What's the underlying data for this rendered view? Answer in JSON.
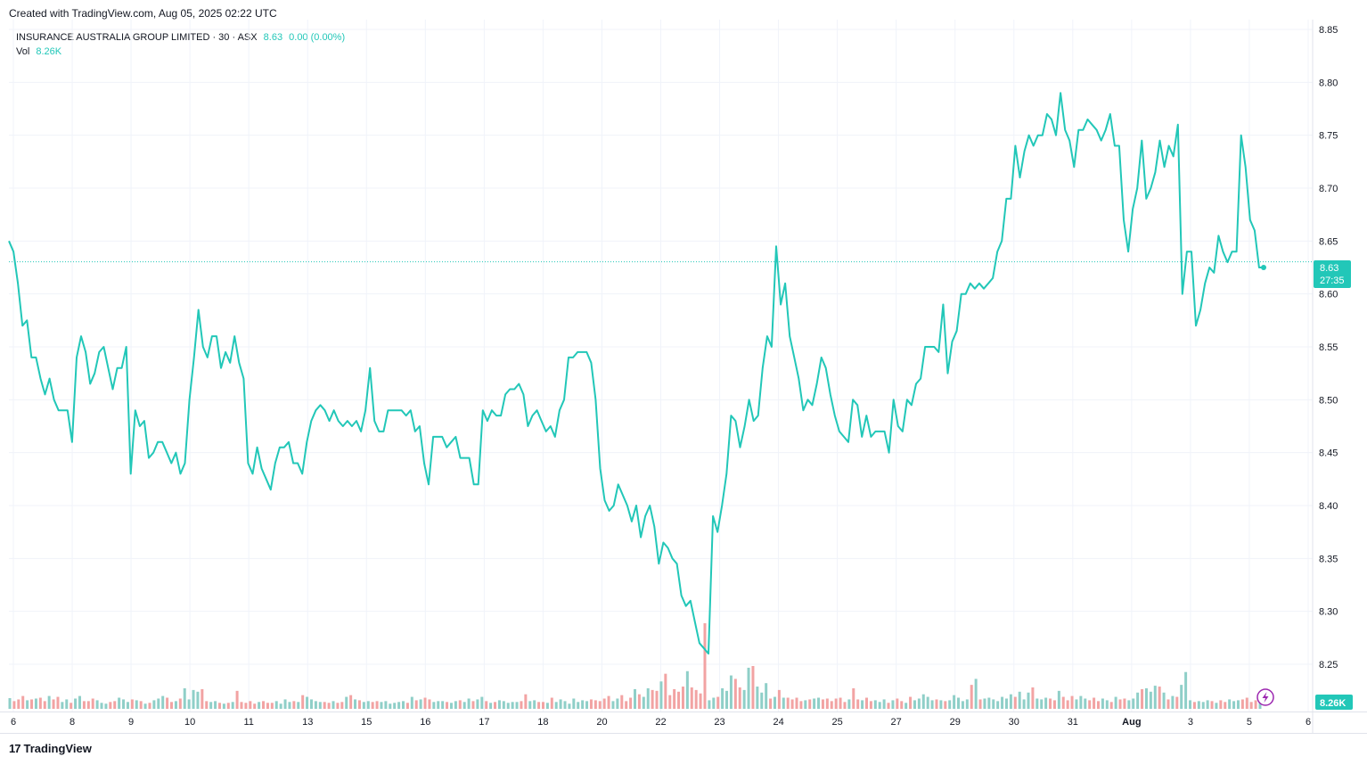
{
  "header": {
    "created": "Created with TradingView.com, Aug 05, 2025 02:22 UTC"
  },
  "legend": {
    "symbol": "INSURANCE AUSTRALIA GROUP LIMITED · 30 · ASX",
    "price": "8.63",
    "change": "0.00 (0.00%)",
    "vol_label": "Vol",
    "vol_value": "8.26K"
  },
  "price_badge": {
    "price": "8.63",
    "timer": "27:35"
  },
  "vol_badge": "8.26K",
  "footer": {
    "logo": "17",
    "brand": "TradingView"
  },
  "colors": {
    "line": "#22c7b8",
    "up_vol": "#8fcfc8",
    "down_vol": "#f2a3a3",
    "grid": "#f0f3fa",
    "badge": "#22c7b8"
  },
  "chart_data": {
    "type": "line",
    "y_ticks": [
      "8.85",
      "8.80",
      "8.75",
      "8.70",
      "8.65",
      "8.60",
      "8.55",
      "8.50",
      "8.45",
      "8.40",
      "8.35",
      "8.30",
      "8.25"
    ],
    "ylim": [
      8.22,
      8.855
    ],
    "x_ticks": [
      "6",
      "8",
      "9",
      "10",
      "11",
      "13",
      "15",
      "16",
      "17",
      "18",
      "20",
      "22",
      "23",
      "24",
      "25",
      "27",
      "29",
      "30",
      "31",
      "Aug",
      "3",
      "5",
      "6"
    ],
    "last_price": 8.63,
    "series": [
      {
        "values": [
          8.65,
          8.64,
          8.61,
          8.57,
          8.575,
          8.54,
          8.54,
          8.52,
          8.505,
          8.52,
          8.5,
          8.49,
          8.49,
          8.49,
          8.46,
          8.54,
          8.56,
          8.545,
          8.515,
          8.525,
          8.545,
          8.55,
          8.53,
          8.51,
          8.53,
          8.53,
          8.55,
          8.43,
          8.49,
          8.475,
          8.48,
          8.445,
          8.45,
          8.46,
          8.46,
          8.45,
          8.44,
          8.45,
          8.43,
          8.44,
          8.5,
          8.54,
          8.585,
          8.55,
          8.54,
          8.56,
          8.56,
          8.53,
          8.545,
          8.535,
          8.56,
          8.535,
          8.52,
          8.44,
          8.43,
          8.455,
          8.435,
          8.425,
          8.415,
          8.44,
          8.455,
          8.455,
          8.46,
          8.44,
          8.44,
          8.43,
          8.46,
          8.48,
          8.49,
          8.495,
          8.49,
          8.48,
          8.49,
          8.48,
          8.475,
          8.48,
          8.475,
          8.48,
          8.47,
          8.49,
          8.53,
          8.48,
          8.47,
          8.47,
          8.49,
          8.49,
          8.49,
          8.49,
          8.485,
          8.49,
          8.47,
          8.475,
          8.44,
          8.42,
          8.465,
          8.465,
          8.465,
          8.455,
          8.46,
          8.465,
          8.445,
          8.445,
          8.445,
          8.42,
          8.42,
          8.49,
          8.48,
          8.49,
          8.485,
          8.485,
          8.505,
          8.51,
          8.51,
          8.515,
          8.505,
          8.475,
          8.485,
          8.49,
          8.48,
          8.47,
          8.475,
          8.465,
          8.49,
          8.5,
          8.54,
          8.54,
          8.545,
          8.545,
          8.545,
          8.535,
          8.5,
          8.435,
          8.405,
          8.395,
          8.4,
          8.42,
          8.41,
          8.4,
          8.385,
          8.4,
          8.37,
          8.39,
          8.4,
          8.38,
          8.345,
          8.365,
          8.36,
          8.35,
          8.345,
          8.315,
          8.305,
          8.31,
          8.29,
          8.27,
          8.265,
          8.26,
          8.39,
          8.375,
          8.4,
          8.43,
          8.485,
          8.48,
          8.455,
          8.475,
          8.5,
          8.48,
          8.485,
          8.53,
          8.56,
          8.55,
          8.645,
          8.59,
          8.61,
          8.56,
          8.54,
          8.52,
          8.49,
          8.5,
          8.495,
          8.515,
          8.54,
          8.53,
          8.505,
          8.485,
          8.47,
          8.465,
          8.46,
          8.5,
          8.495,
          8.465,
          8.485,
          8.465,
          8.47,
          8.47,
          8.47,
          8.45,
          8.5,
          8.475,
          8.47,
          8.5,
          8.495,
          8.515,
          8.52,
          8.55,
          8.55,
          8.55,
          8.545,
          8.59,
          8.525,
          8.555,
          8.565,
          8.6,
          8.6,
          8.61,
          8.605,
          8.61,
          8.605,
          8.61,
          8.615,
          8.64,
          8.65,
          8.69,
          8.69,
          8.74,
          8.71,
          8.735,
          8.75,
          8.74,
          8.75,
          8.75,
          8.77,
          8.765,
          8.75,
          8.79,
          8.755,
          8.745,
          8.72,
          8.755,
          8.755,
          8.765,
          8.76,
          8.755,
          8.745,
          8.755,
          8.77,
          8.74,
          8.74,
          8.67,
          8.64,
          8.68,
          8.7,
          8.745,
          8.69,
          8.7,
          8.715,
          8.745,
          8.72,
          8.74,
          8.73,
          8.76,
          8.6,
          8.64,
          8.64,
          8.57,
          8.585,
          8.61,
          8.625,
          8.62,
          8.655,
          8.64,
          8.63,
          8.64,
          8.64,
          8.75,
          8.72,
          8.67,
          8.66,
          8.625,
          8.625
        ]
      }
    ],
    "volume": {
      "values": [
        25,
        18,
        22,
        30,
        20,
        22,
        24,
        26,
        18,
        30,
        22,
        28,
        16,
        22,
        14,
        24,
        30,
        18,
        18,
        24,
        20,
        14,
        12,
        16,
        18,
        26,
        22,
        16,
        22,
        20,
        18,
        12,
        14,
        20,
        24,
        30,
        26,
        16,
        18,
        24,
        48,
        22,
        44,
        40,
        46,
        18,
        16,
        18,
        14,
        12,
        14,
        16,
        42,
        16,
        14,
        18,
        12,
        16,
        18,
        14,
        14,
        18,
        12,
        22,
        16,
        18,
        16,
        32,
        28,
        22,
        18,
        16,
        16,
        14,
        18,
        14,
        16,
        28,
        32,
        22,
        20,
        16,
        18,
        16,
        18,
        16,
        18,
        12,
        14,
        16,
        18,
        14,
        28,
        20,
        22,
        26,
        22,
        16,
        18,
        18,
        16,
        14,
        18,
        20,
        16,
        24,
        18,
        22,
        28,
        18,
        14,
        16,
        20,
        18,
        14,
        16,
        16,
        18,
        34,
        18,
        20,
        16,
        16,
        14,
        26,
        16,
        22,
        18,
        12,
        24,
        16,
        20,
        18,
        22,
        20,
        18,
        24,
        30,
        18,
        24,
        32,
        18,
        26,
        46,
        34,
        28,
        48,
        44,
        42,
        64,
        82,
        32,
        46,
        40,
        52,
        88,
        50,
        44,
        36,
        200,
        20,
        26,
        28,
        48,
        42,
        78,
        70,
        50,
        44,
        96,
        100,
        52,
        38,
        60,
        24,
        28,
        44,
        26,
        26,
        22,
        26,
        18,
        20,
        22,
        24,
        26,
        22,
        24,
        18,
        24,
        26,
        16,
        22,
        48,
        22,
        20,
        26,
        18,
        20,
        16,
        22,
        14,
        20,
        24,
        18,
        14,
        28,
        20,
        24,
        34,
        28,
        20,
        22,
        20,
        18,
        20,
        32,
        26,
        18,
        22,
        56,
        70,
        22,
        24,
        26,
        22,
        18,
        28,
        24,
        34,
        28,
        40,
        22,
        38,
        50,
        24,
        22,
        26,
        24,
        20,
        42,
        28,
        20,
        30,
        22,
        30,
        24,
        20,
        26,
        18,
        24,
        20,
        16,
        28,
        22,
        24,
        20,
        24,
        38,
        46,
        48,
        40,
        54,
        52,
        38,
        22,
        30,
        28,
        56,
        86,
        20,
        16,
        18,
        16,
        20,
        18,
        14,
        20,
        16,
        22,
        18,
        20,
        22,
        26,
        16,
        20,
        34
      ]
    }
  }
}
